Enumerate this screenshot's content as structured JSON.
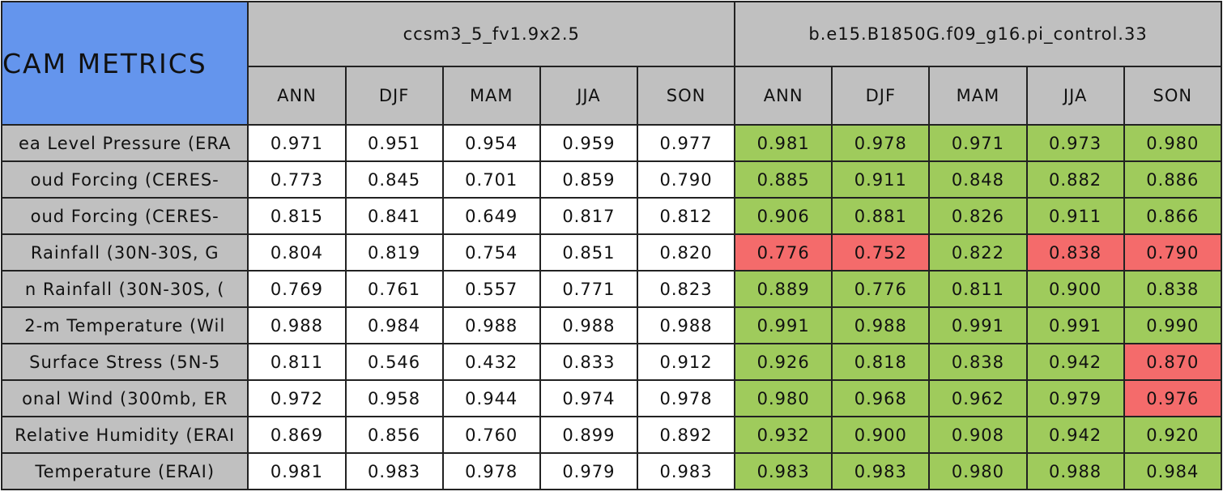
{
  "header": {
    "title": "CAM METRICS",
    "groups": [
      {
        "name": "ccsm3_5_fv1.9x2.5",
        "columns": [
          "ANN",
          "DJF",
          "MAM",
          "JJA",
          "SON"
        ]
      },
      {
        "name": "b.e15.B1850G.f09_g16.pi_control.33",
        "columns": [
          "ANN",
          "DJF",
          "MAM",
          "JJA",
          "SON"
        ]
      }
    ]
  },
  "table": {
    "rows": [
      {
        "label": "ea Level Pressure (ERA",
        "values": [
          "0.971",
          "0.951",
          "0.954",
          "0.959",
          "0.977",
          "0.981",
          "0.978",
          "0.971",
          "0.973",
          "0.980"
        ],
        "colors": [
          "#ffffff",
          "#ffffff",
          "#ffffff",
          "#ffffff",
          "#ffffff",
          "#9fcb5c",
          "#9fcb5c",
          "#9fcb5c",
          "#9fcb5c",
          "#9fcb5c"
        ]
      },
      {
        "label": "oud Forcing (CERES-",
        "values": [
          "0.773",
          "0.845",
          "0.701",
          "0.859",
          "0.790",
          "0.885",
          "0.911",
          "0.848",
          "0.882",
          "0.886"
        ],
        "colors": [
          "#ffffff",
          "#ffffff",
          "#ffffff",
          "#ffffff",
          "#ffffff",
          "#9fcb5c",
          "#9fcb5c",
          "#9fcb5c",
          "#9fcb5c",
          "#9fcb5c"
        ]
      },
      {
        "label": "oud Forcing (CERES-",
        "values": [
          "0.815",
          "0.841",
          "0.649",
          "0.817",
          "0.812",
          "0.906",
          "0.881",
          "0.826",
          "0.911",
          "0.866"
        ],
        "colors": [
          "#ffffff",
          "#ffffff",
          "#ffffff",
          "#ffffff",
          "#ffffff",
          "#9fcb5c",
          "#9fcb5c",
          "#9fcb5c",
          "#9fcb5c",
          "#9fcb5c"
        ]
      },
      {
        "label": "Rainfall (30N-30S, G",
        "values": [
          "0.804",
          "0.819",
          "0.754",
          "0.851",
          "0.820",
          "0.776",
          "0.752",
          "0.822",
          "0.838",
          "0.790"
        ],
        "colors": [
          "#ffffff",
          "#ffffff",
          "#ffffff",
          "#ffffff",
          "#ffffff",
          "#f46b6b",
          "#f46b6b",
          "#9fcb5c",
          "#f46b6b",
          "#f46b6b"
        ]
      },
      {
        "label": "n Rainfall (30N-30S, (",
        "values": [
          "0.769",
          "0.761",
          "0.557",
          "0.771",
          "0.823",
          "0.889",
          "0.776",
          "0.811",
          "0.900",
          "0.838"
        ],
        "colors": [
          "#ffffff",
          "#ffffff",
          "#ffffff",
          "#ffffff",
          "#ffffff",
          "#9fcb5c",
          "#9fcb5c",
          "#9fcb5c",
          "#9fcb5c",
          "#9fcb5c"
        ]
      },
      {
        "label": "2-m Temperature (Wil",
        "values": [
          "0.988",
          "0.984",
          "0.988",
          "0.988",
          "0.988",
          "0.991",
          "0.988",
          "0.991",
          "0.991",
          "0.990"
        ],
        "colors": [
          "#ffffff",
          "#ffffff",
          "#ffffff",
          "#ffffff",
          "#ffffff",
          "#9fcb5c",
          "#9fcb5c",
          "#9fcb5c",
          "#9fcb5c",
          "#9fcb5c"
        ]
      },
      {
        "label": "Surface Stress (5N-5",
        "values": [
          "0.811",
          "0.546",
          "0.432",
          "0.833",
          "0.912",
          "0.926",
          "0.818",
          "0.838",
          "0.942",
          "0.870"
        ],
        "colors": [
          "#ffffff",
          "#ffffff",
          "#ffffff",
          "#ffffff",
          "#ffffff",
          "#9fcb5c",
          "#9fcb5c",
          "#9fcb5c",
          "#9fcb5c",
          "#f46b6b"
        ]
      },
      {
        "label": "onal Wind (300mb, ER",
        "values": [
          "0.972",
          "0.958",
          "0.944",
          "0.974",
          "0.978",
          "0.980",
          "0.968",
          "0.962",
          "0.979",
          "0.976"
        ],
        "colors": [
          "#ffffff",
          "#ffffff",
          "#ffffff",
          "#ffffff",
          "#ffffff",
          "#9fcb5c",
          "#9fcb5c",
          "#9fcb5c",
          "#9fcb5c",
          "#f46b6b"
        ]
      },
      {
        "label": "Relative Humidity (ERAI",
        "values": [
          "0.869",
          "0.856",
          "0.760",
          "0.899",
          "0.892",
          "0.932",
          "0.900",
          "0.908",
          "0.942",
          "0.920"
        ],
        "colors": [
          "#ffffff",
          "#ffffff",
          "#ffffff",
          "#ffffff",
          "#ffffff",
          "#9fcb5c",
          "#9fcb5c",
          "#9fcb5c",
          "#9fcb5c",
          "#9fcb5c"
        ]
      },
      {
        "label": "Temperature (ERAI)",
        "values": [
          "0.981",
          "0.983",
          "0.978",
          "0.979",
          "0.983",
          "0.983",
          "0.983",
          "0.980",
          "0.988",
          "0.984"
        ],
        "colors": [
          "#ffffff",
          "#ffffff",
          "#ffffff",
          "#ffffff",
          "#ffffff",
          "#9fcb5c",
          "#9fcb5c",
          "#9fcb5c",
          "#9fcb5c",
          "#9fcb5c"
        ]
      }
    ]
  }
}
